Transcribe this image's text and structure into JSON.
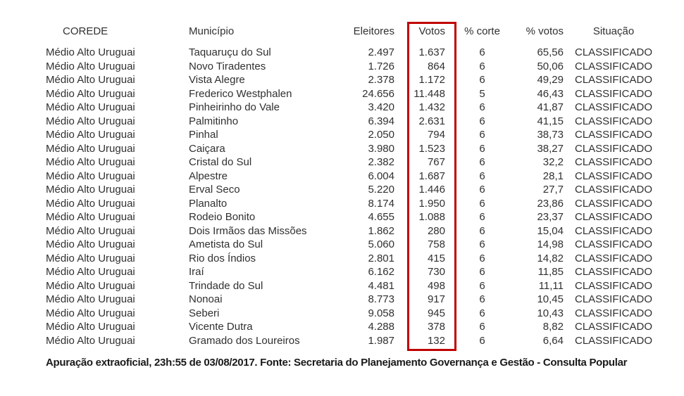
{
  "columns": {
    "corede": "COREDE",
    "municipio": "Município",
    "eleitores": "Eleitores",
    "votos": "Votos",
    "corte": "% corte",
    "pvotos": "% votos",
    "situacao": "Situação"
  },
  "table": {
    "rows": [
      {
        "corede": "Médio Alto Uruguai",
        "municipio": "Taquaruçu do Sul",
        "eleitores": "2.497",
        "votos": "1.637",
        "corte": "6",
        "pvotos": "65,56",
        "situacao": "CLASSIFICADO"
      },
      {
        "corede": "Médio Alto Uruguai",
        "municipio": "Novo Tiradentes",
        "eleitores": "1.726",
        "votos": "864",
        "corte": "6",
        "pvotos": "50,06",
        "situacao": "CLASSIFICADO"
      },
      {
        "corede": "Médio Alto Uruguai",
        "municipio": "Vista Alegre",
        "eleitores": "2.378",
        "votos": "1.172",
        "corte": "6",
        "pvotos": "49,29",
        "situacao": "CLASSIFICADO"
      },
      {
        "corede": "Médio Alto Uruguai",
        "municipio": "Frederico Westphalen",
        "eleitores": "24.656",
        "votos": "11.448",
        "corte": "5",
        "pvotos": "46,43",
        "situacao": "CLASSIFICADO"
      },
      {
        "corede": "Médio Alto Uruguai",
        "municipio": "Pinheirinho do Vale",
        "eleitores": "3.420",
        "votos": "1.432",
        "corte": "6",
        "pvotos": "41,87",
        "situacao": "CLASSIFICADO"
      },
      {
        "corede": "Médio Alto Uruguai",
        "municipio": "Palmitinho",
        "eleitores": "6.394",
        "votos": "2.631",
        "corte": "6",
        "pvotos": "41,15",
        "situacao": "CLASSIFICADO"
      },
      {
        "corede": "Médio Alto Uruguai",
        "municipio": "Pinhal",
        "eleitores": "2.050",
        "votos": "794",
        "corte": "6",
        "pvotos": "38,73",
        "situacao": "CLASSIFICADO"
      },
      {
        "corede": "Médio Alto Uruguai",
        "municipio": "Caiçara",
        "eleitores": "3.980",
        "votos": "1.523",
        "corte": "6",
        "pvotos": "38,27",
        "situacao": "CLASSIFICADO"
      },
      {
        "corede": "Médio Alto Uruguai",
        "municipio": "Cristal do Sul",
        "eleitores": "2.382",
        "votos": "767",
        "corte": "6",
        "pvotos": "32,2",
        "situacao": "CLASSIFICADO"
      },
      {
        "corede": "Médio Alto Uruguai",
        "municipio": "Alpestre",
        "eleitores": "6.004",
        "votos": "1.687",
        "corte": "6",
        "pvotos": "28,1",
        "situacao": "CLASSIFICADO"
      },
      {
        "corede": "Médio Alto Uruguai",
        "municipio": "Erval Seco",
        "eleitores": "5.220",
        "votos": "1.446",
        "corte": "6",
        "pvotos": "27,7",
        "situacao": "CLASSIFICADO"
      },
      {
        "corede": "Médio Alto Uruguai",
        "municipio": "Planalto",
        "eleitores": "8.174",
        "votos": "1.950",
        "corte": "6",
        "pvotos": "23,86",
        "situacao": "CLASSIFICADO"
      },
      {
        "corede": "Médio Alto Uruguai",
        "municipio": "Rodeio Bonito",
        "eleitores": "4.655",
        "votos": "1.088",
        "corte": "6",
        "pvotos": "23,37",
        "situacao": "CLASSIFICADO"
      },
      {
        "corede": "Médio Alto Uruguai",
        "municipio": "Dois Irmãos das Missões",
        "eleitores": "1.862",
        "votos": "280",
        "corte": "6",
        "pvotos": "15,04",
        "situacao": "CLASSIFICADO"
      },
      {
        "corede": "Médio Alto Uruguai",
        "municipio": "Ametista do Sul",
        "eleitores": "5.060",
        "votos": "758",
        "corte": "6",
        "pvotos": "14,98",
        "situacao": "CLASSIFICADO"
      },
      {
        "corede": "Médio Alto Uruguai",
        "municipio": "Rio dos Índios",
        "eleitores": "2.801",
        "votos": "415",
        "corte": "6",
        "pvotos": "14,82",
        "situacao": "CLASSIFICADO"
      },
      {
        "corede": "Médio Alto Uruguai",
        "municipio": "Iraí",
        "eleitores": "6.162",
        "votos": "730",
        "corte": "6",
        "pvotos": "11,85",
        "situacao": "CLASSIFICADO"
      },
      {
        "corede": "Médio Alto Uruguai",
        "municipio": "Trindade do Sul",
        "eleitores": "4.481",
        "votos": "498",
        "corte": "6",
        "pvotos": "11,11",
        "situacao": "CLASSIFICADO"
      },
      {
        "corede": "Médio Alto Uruguai",
        "municipio": "Nonoai",
        "eleitores": "8.773",
        "votos": "917",
        "corte": "6",
        "pvotos": "10,45",
        "situacao": "CLASSIFICADO"
      },
      {
        "corede": "Médio Alto Uruguai",
        "municipio": "Seberi",
        "eleitores": "9.058",
        "votos": "945",
        "corte": "6",
        "pvotos": "10,43",
        "situacao": "CLASSIFICADO"
      },
      {
        "corede": "Médio Alto Uruguai",
        "municipio": "Vicente Dutra",
        "eleitores": "4.288",
        "votos": "378",
        "corte": "6",
        "pvotos": "8,82",
        "situacao": "CLASSIFICADO"
      },
      {
        "corede": "Médio Alto Uruguai",
        "municipio": "Gramado dos Loureiros",
        "eleitores": "1.987",
        "votos": "132",
        "corte": "6",
        "pvotos": "6,64",
        "situacao": "CLASSIFICADO"
      }
    ]
  },
  "highlight": {
    "column": "Votos",
    "box_color": "#c00000"
  },
  "footer": {
    "note": "Apuração extraoficial, 23h:55 de 03/08/2017. Fonte: Secretaria do Planejamento Governança e Gestão - Consulta Popular"
  }
}
